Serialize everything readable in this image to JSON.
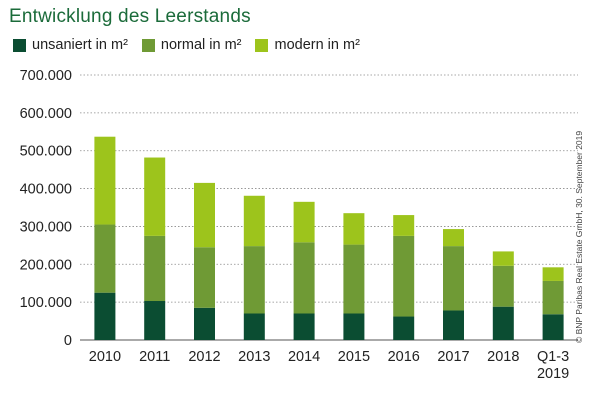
{
  "chart_data": {
    "type": "bar",
    "stacked": true,
    "title": "Entwicklung des Leerstands",
    "categories": [
      "2010",
      "2011",
      "2012",
      "2013",
      "2014",
      "2015",
      "2016",
      "2017",
      "2018",
      "Q1-3 2019"
    ],
    "series": [
      {
        "name": "unsaniert in m²",
        "color": "#0b4d32",
        "values": [
          125000,
          103000,
          85000,
          70000,
          70000,
          70000,
          62000,
          78000,
          88000,
          68000
        ]
      },
      {
        "name": "normal in m²",
        "color": "#6f9a35",
        "values": [
          180000,
          172000,
          160000,
          178000,
          188000,
          182000,
          213000,
          170000,
          108000,
          88000
        ]
      },
      {
        "name": "modern in m²",
        "color": "#9dc41c",
        "values": [
          232000,
          207000,
          170000,
          133000,
          107000,
          83000,
          55000,
          45000,
          38000,
          36000
        ]
      }
    ],
    "ylim": [
      0,
      700000
    ],
    "yticks": [
      "0",
      "100.000",
      "200.000",
      "300.000",
      "400.000",
      "500.000",
      "600.000",
      "700.000"
    ],
    "grid": true,
    "legend": "top-left"
  },
  "source_note": "© BNP Paribas Real Estate GmbH, 30. September 2019"
}
